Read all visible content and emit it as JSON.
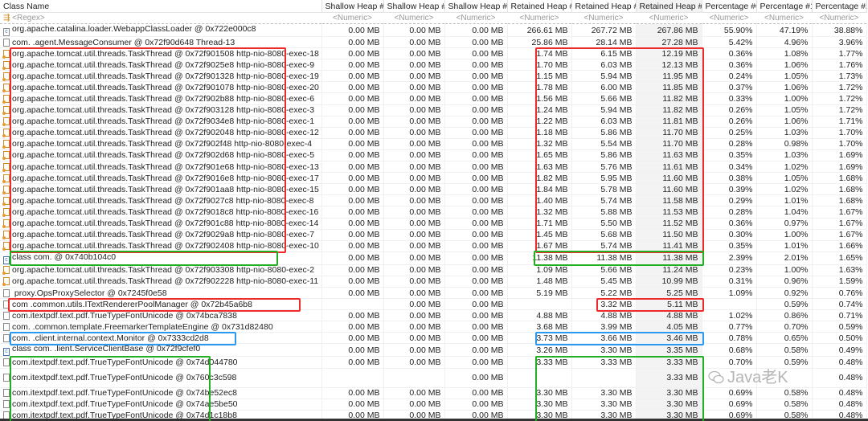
{
  "columns": [
    "Class Name",
    "Shallow Heap #0",
    "Shallow Heap #1",
    "Shallow Heap #2",
    "Retained Heap #0",
    "Retained Heap #1",
    "Retained Heap #2",
    "Percentage #0",
    "Percentage #1",
    "Percentage #2"
  ],
  "filters": [
    "<Regex>",
    "<Numeric>",
    "<Numeric>",
    "<Numeric>",
    "<Numeric>",
    "<Numeric>",
    "<Numeric>",
    "<Numeric>",
    "<Numeric>",
    "<Numeric>"
  ],
  "highlight_colors": {
    "red": "#ee2a2a",
    "green": "#22b022",
    "blue": "#2a9af0"
  },
  "watermark": "Java老K",
  "rows": [
    [
      "loader",
      "org.apache.catalina.loader.WebappClassLoader @ 0x722e000c8",
      "0.00 MB",
      "0.00 MB",
      "0.00 MB",
      "266.61 MB",
      "267.72 MB",
      "267.86 MB",
      "55.90%",
      "47.19%",
      "38.88%"
    ],
    [
      "file",
      "com.            .agent.MessageConsumer @ 0x72f90d648  Thread-13",
      "0.00 MB",
      "0.00 MB",
      "0.00 MB",
      "25.86 MB",
      "28.14 MB",
      "27.28 MB",
      "5.42%",
      "4.96%",
      "3.96%"
    ],
    [
      "thread",
      "org.apache.tomcat.util.threads.TaskThread @ 0x72f901508  http-nio-8080-exec-18",
      "0.00 MB",
      "0.00 MB",
      "0.00 MB",
      "1.74 MB",
      "6.15 MB",
      "12.19 MB",
      "0.36%",
      "1.08%",
      "1.77%"
    ],
    [
      "thread",
      "org.apache.tomcat.util.threads.TaskThread @ 0x72f9025e8  http-nio-8080-exec-9",
      "0.00 MB",
      "0.00 MB",
      "0.00 MB",
      "1.70 MB",
      "6.03 MB",
      "12.13 MB",
      "0.36%",
      "1.06%",
      "1.76%"
    ],
    [
      "thread",
      "org.apache.tomcat.util.threads.TaskThread @ 0x72f901328  http-nio-8080-exec-19",
      "0.00 MB",
      "0.00 MB",
      "0.00 MB",
      "1.15 MB",
      "5.94 MB",
      "11.95 MB",
      "0.24%",
      "1.05%",
      "1.73%"
    ],
    [
      "thread",
      "org.apache.tomcat.util.threads.TaskThread @ 0x72f901078  http-nio-8080-exec-20",
      "0.00 MB",
      "0.00 MB",
      "0.00 MB",
      "1.78 MB",
      "6.00 MB",
      "11.85 MB",
      "0.37%",
      "1.06%",
      "1.72%"
    ],
    [
      "thread",
      "org.apache.tomcat.util.threads.TaskThread @ 0x72f902b88  http-nio-8080-exec-6",
      "0.00 MB",
      "0.00 MB",
      "0.00 MB",
      "1.56 MB",
      "5.66 MB",
      "11.82 MB",
      "0.33%",
      "1.00%",
      "1.72%"
    ],
    [
      "thread",
      "org.apache.tomcat.util.threads.TaskThread @ 0x72f903128  http-nio-8080-exec-3",
      "0.00 MB",
      "0.00 MB",
      "0.00 MB",
      "1.24 MB",
      "5.94 MB",
      "11.82 MB",
      "0.26%",
      "1.05%",
      "1.72%"
    ],
    [
      "thread",
      "org.apache.tomcat.util.threads.TaskThread @ 0x72f9034e8  http-nio-8080-exec-1",
      "0.00 MB",
      "0.00 MB",
      "0.00 MB",
      "1.22 MB",
      "6.03 MB",
      "11.81 MB",
      "0.26%",
      "1.06%",
      "1.71%"
    ],
    [
      "thread",
      "org.apache.tomcat.util.threads.TaskThread @ 0x72f902048  http-nio-8080-exec-12",
      "0.00 MB",
      "0.00 MB",
      "0.00 MB",
      "1.18 MB",
      "5.86 MB",
      "11.70 MB",
      "0.25%",
      "1.03%",
      "1.70%"
    ],
    [
      "thread",
      "org.apache.tomcat.util.threads.TaskThread @ 0x72f902f48  http-nio-8080-exec-4",
      "0.00 MB",
      "0.00 MB",
      "0.00 MB",
      "1.32 MB",
      "5.54 MB",
      "11.70 MB",
      "0.28%",
      "0.98%",
      "1.70%"
    ],
    [
      "thread",
      "org.apache.tomcat.util.threads.TaskThread @ 0x72f902d68  http-nio-8080-exec-5",
      "0.00 MB",
      "0.00 MB",
      "0.00 MB",
      "1.65 MB",
      "5.86 MB",
      "11.63 MB",
      "0.35%",
      "1.03%",
      "1.69%"
    ],
    [
      "thread",
      "org.apache.tomcat.util.threads.TaskThread @ 0x72f901e68  http-nio-8080-exec-13",
      "0.00 MB",
      "0.00 MB",
      "0.00 MB",
      "1.63 MB",
      "5.76 MB",
      "11.61 MB",
      "0.34%",
      "1.02%",
      "1.69%"
    ],
    [
      "thread",
      "org.apache.tomcat.util.threads.TaskThread @ 0x72f9016e8  http-nio-8080-exec-17",
      "0.00 MB",
      "0.00 MB",
      "0.00 MB",
      "1.82 MB",
      "5.95 MB",
      "11.60 MB",
      "0.38%",
      "1.05%",
      "1.68%"
    ],
    [
      "thread",
      "org.apache.tomcat.util.threads.TaskThread @ 0x72f901aa8  http-nio-8080-exec-15",
      "0.00 MB",
      "0.00 MB",
      "0.00 MB",
      "1.84 MB",
      "5.78 MB",
      "11.60 MB",
      "0.39%",
      "1.02%",
      "1.68%"
    ],
    [
      "thread",
      "org.apache.tomcat.util.threads.TaskThread @ 0x72f9027c8  http-nio-8080-exec-8",
      "0.00 MB",
      "0.00 MB",
      "0.00 MB",
      "1.40 MB",
      "5.74 MB",
      "11.58 MB",
      "0.29%",
      "1.01%",
      "1.68%"
    ],
    [
      "thread",
      "org.apache.tomcat.util.threads.TaskThread @ 0x72f9018c8  http-nio-8080-exec-16",
      "0.00 MB",
      "0.00 MB",
      "0.00 MB",
      "1.32 MB",
      "5.88 MB",
      "11.53 MB",
      "0.28%",
      "1.04%",
      "1.67%"
    ],
    [
      "thread",
      "org.apache.tomcat.util.threads.TaskThread @ 0x72f901c88  http-nio-8080-exec-14",
      "0.00 MB",
      "0.00 MB",
      "0.00 MB",
      "1.71 MB",
      "5.50 MB",
      "11.52 MB",
      "0.36%",
      "0.97%",
      "1.67%"
    ],
    [
      "thread",
      "org.apache.tomcat.util.threads.TaskThread @ 0x72f9029a8  http-nio-8080-exec-7",
      "0.00 MB",
      "0.00 MB",
      "0.00 MB",
      "1.45 MB",
      "5.68 MB",
      "11.50 MB",
      "0.30%",
      "1.00%",
      "1.67%"
    ],
    [
      "thread",
      "org.apache.tomcat.util.threads.TaskThread @ 0x72f902408  http-nio-8080-exec-10",
      "0.00 MB",
      "0.00 MB",
      "0.00 MB",
      "1.67 MB",
      "5.74 MB",
      "11.41 MB",
      "0.35%",
      "1.01%",
      "1.66%"
    ],
    [
      "classobj",
      "class com.                                          @ 0x740b104c0",
      "0.00 MB",
      "0.00 MB",
      "0.00 MB",
      "11.38 MB",
      "11.38 MB",
      "11.38 MB",
      "2.39%",
      "2.01%",
      "1.65%"
    ],
    [
      "thread",
      "org.apache.tomcat.util.threads.TaskThread @ 0x72f903308  http-nio-8080-exec-2",
      "0.00 MB",
      "0.00 MB",
      "0.00 MB",
      "1.09 MB",
      "5.66 MB",
      "11.24 MB",
      "0.23%",
      "1.00%",
      "1.63%"
    ],
    [
      "thread",
      "org.apache.tomcat.util.threads.TaskThread @ 0x72f902228  http-nio-8080-exec-11",
      "0.00 MB",
      "0.00 MB",
      "0.00 MB",
      "1.48 MB",
      "5.45 MB",
      "10.99 MB",
      "0.31%",
      "0.96%",
      "1.59%"
    ],
    [
      "file",
      "        proxy.OpsProxySelector @ 0x7245f0e58",
      "0.00 MB",
      "0.00 MB",
      "0.00 MB",
      "5.19 MB",
      "5.22 MB",
      "5.25 MB",
      "1.09%",
      "0.92%",
      "0.76%"
    ],
    [
      "file",
      "com                          .common.utils.ITextRendererPoolManager @ 0x72b45a6b8",
      "",
      "0.00 MB",
      "0.00 MB",
      "",
      "3.32 MB",
      "5.11 MB",
      "",
      "0.59%",
      "0.74%"
    ],
    [
      "file",
      "com.itextpdf.text.pdf.TrueTypeFontUnicode @ 0x74bca7838",
      "0.00 MB",
      "0.00 MB",
      "0.00 MB",
      "4.88 MB",
      "4.88 MB",
      "4.88 MB",
      "1.02%",
      "0.86%",
      "0.71%"
    ],
    [
      "file",
      "com.                      .common.template.FreemarkerTemplateEngine @ 0x731d82480",
      "0.00 MB",
      "0.00 MB",
      "0.00 MB",
      "3.68 MB",
      "3.99 MB",
      "4.05 MB",
      "0.77%",
      "0.70%",
      "0.59%"
    ],
    [
      "file",
      "com.                    .client.internal.context.Monitor @ 0x7333cd2d8",
      "0.00 MB",
      "0.00 MB",
      "0.00 MB",
      "3.73 MB",
      "3.66 MB",
      "3.46 MB",
      "0.78%",
      "0.65%",
      "0.50%"
    ],
    [
      "classobj",
      "class com.                .lient.ServiceClientBase @ 0x72f9cfef0",
      "0.00 MB",
      "0.00 MB",
      "0.00 MB",
      "3.26 MB",
      "3.30 MB",
      "3.35 MB",
      "0.68%",
      "0.58%",
      "0.49%"
    ],
    [
      "file",
      "com.itextpdf.text.pdf.TrueTypeFontUnicode @ 0x74d044780",
      "0.00 MB",
      "0.00 MB",
      "0.00 MB",
      "3.33 MB",
      "3.33 MB",
      "3.33 MB",
      "0.70%",
      "0.59%",
      "0.48%"
    ],
    [
      "file",
      "com.itextpdf.text.pdf.TrueTypeFontUnicode @ 0x760c3c598",
      "",
      "",
      "0.00 MB",
      "",
      "",
      "3.33 MB",
      "",
      "",
      "0.48%"
    ],
    [
      "file",
      "com.itextpdf.text.pdf.TrueTypeFontUnicode @ 0x74be52ec8",
      "0.00 MB",
      "0.00 MB",
      "0.00 MB",
      "3.30 MB",
      "3.30 MB",
      "3.30 MB",
      "0.69%",
      "0.58%",
      "0.48%"
    ],
    [
      "file",
      "com.itextpdf.text.pdf.TrueTypeFontUnicode @ 0x74ae5be50",
      "0.00 MB",
      "0.00 MB",
      "0.00 MB",
      "3.30 MB",
      "3.30 MB",
      "3.30 MB",
      "0.69%",
      "0.58%",
      "0.48%"
    ],
    [
      "file",
      "com.itextpdf.text.pdf.TrueTypeFontUnicode @ 0x74d1c18b8",
      "0.00 MB",
      "0.00 MB",
      "0.00 MB",
      "3.30 MB",
      "3.30 MB",
      "3.30 MB",
      "0.69%",
      "0.58%",
      "0.48%"
    ]
  ]
}
